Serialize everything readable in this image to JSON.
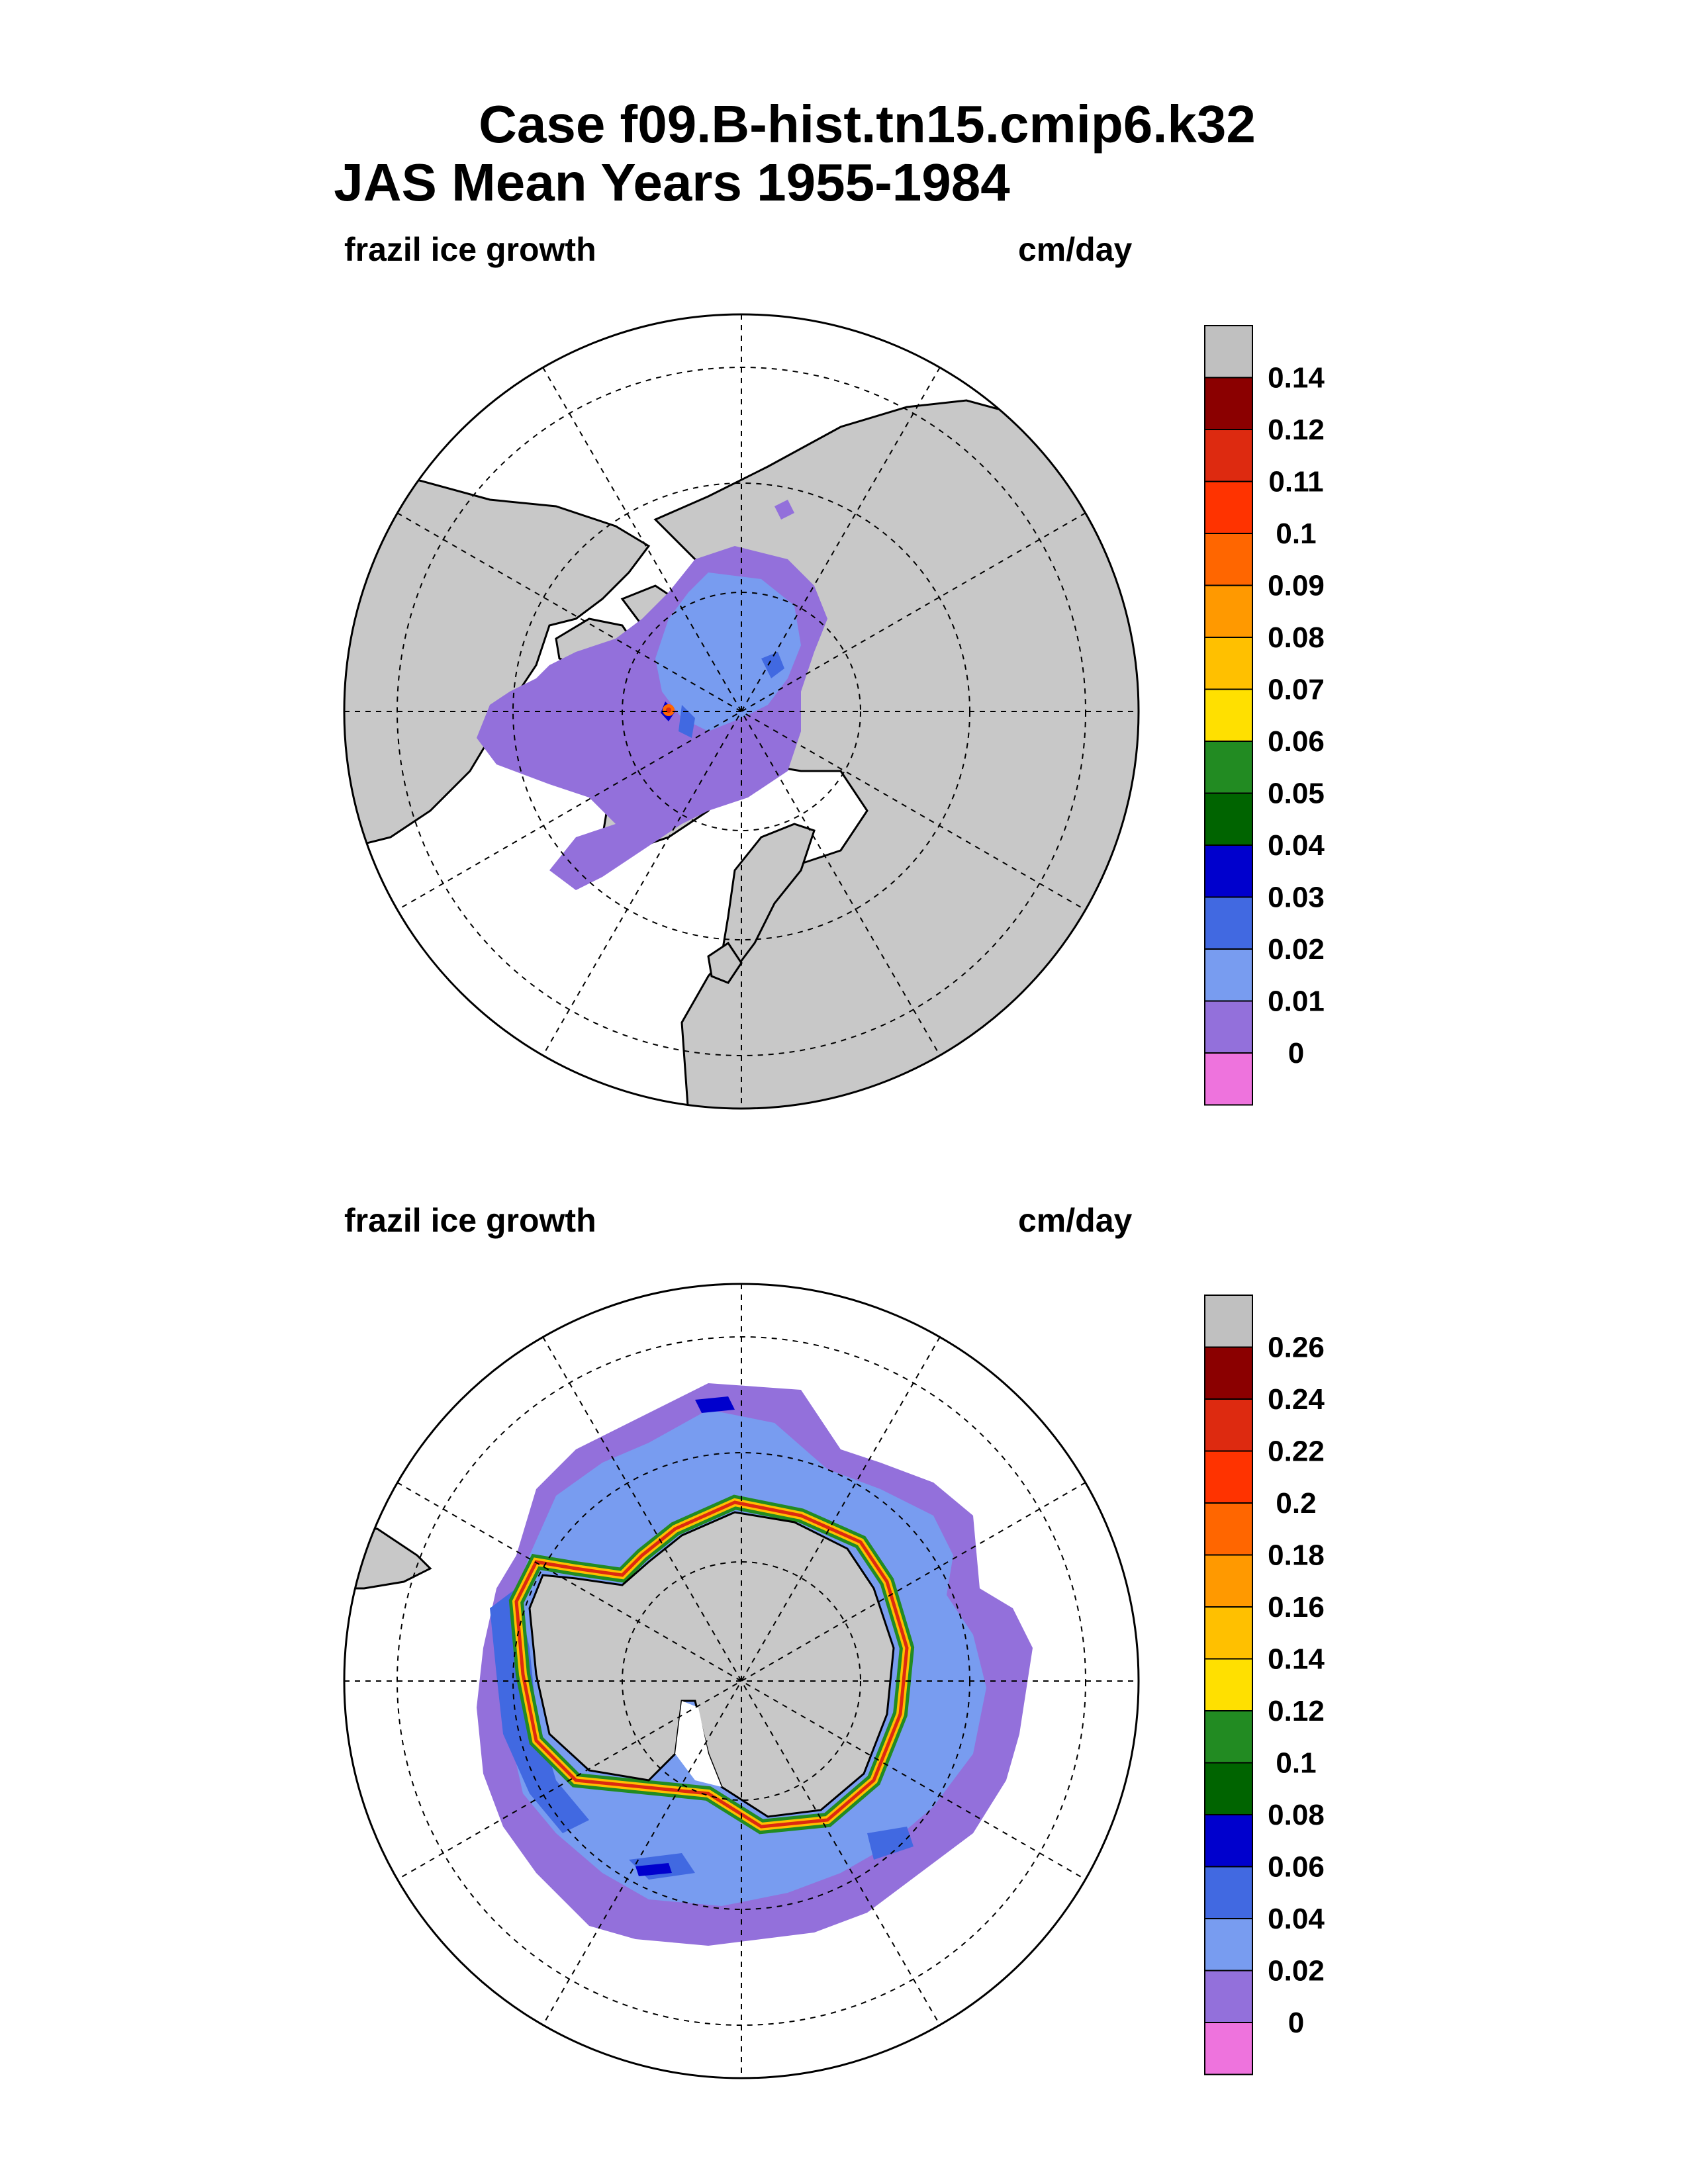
{
  "title": {
    "line1": "Case f09.B-hist.tn15.cmip6.k32",
    "line2": "JAS Mean   Years 1955-1984"
  },
  "colors": {
    "land": "#c8c8c8",
    "ocean_nodata": "#ffffff",
    "scale": [
      "#ee73dd",
      "#9370db",
      "#789cf0",
      "#4169e1",
      "#0000cd",
      "#006400",
      "#228b22",
      "#ffe000",
      "#ffc000",
      "#ff9900",
      "#ff6600",
      "#ff3300",
      "#dd2a10",
      "#8b0000",
      "#c0c0c0"
    ]
  },
  "chart_data": [
    {
      "type": "heatmap",
      "projection": "north-polar-stereographic",
      "region": "Northern Hemisphere",
      "variable_label": "frazil ice growth",
      "units_label": "cm/day",
      "colorbar_levels": [
        "0.14",
        "0.12",
        "0.11",
        "0.1",
        "0.09",
        "0.08",
        "0.07",
        "0.06",
        "0.05",
        "0.04",
        "0.03",
        "0.02",
        "0.01",
        "0"
      ],
      "grid": true
    },
    {
      "type": "heatmap",
      "projection": "south-polar-stereographic",
      "region": "Southern Hemisphere",
      "variable_label": "frazil ice growth",
      "units_label": "cm/day",
      "colorbar_levels": [
        "0.26",
        "0.24",
        "0.22",
        "0.2",
        "0.18",
        "0.16",
        "0.14",
        "0.12",
        "0.1",
        "0.08",
        "0.06",
        "0.04",
        "0.02",
        "0"
      ],
      "grid": true
    }
  ]
}
